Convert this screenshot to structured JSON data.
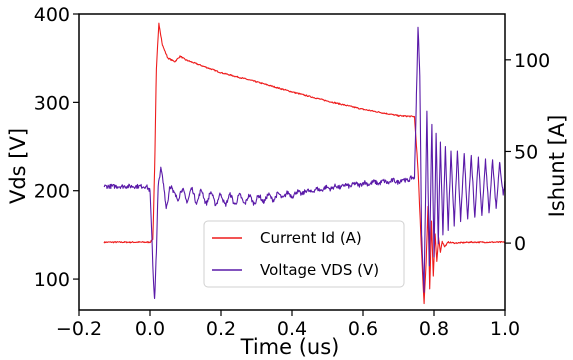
{
  "chart_data": {
    "type": "line",
    "xlabel": "Time (us)",
    "ylabel": "Vds [V]",
    "y2label": "Ishunt [A]",
    "xlim": [
      -0.2,
      1.0
    ],
    "ylim": [
      65,
      400
    ],
    "y2lim": [
      -36.5,
      125
    ],
    "x_ticks": [
      -0.2,
      0.0,
      0.2,
      0.4,
      0.6,
      0.8,
      1.0
    ],
    "x_tick_labels": [
      "−0.2",
      "0.0",
      "0.2",
      "0.4",
      "0.6",
      "0.8",
      "1.0"
    ],
    "y_ticks": [
      100,
      200,
      300,
      400
    ],
    "y_tick_labels": [
      "100",
      "200",
      "300",
      "400"
    ],
    "y2_ticks": [
      0,
      50,
      100
    ],
    "y2_tick_labels": [
      "0",
      "50",
      "100"
    ],
    "grid": false,
    "legend_position": "lower-center",
    "series": [
      {
        "name": "Current Id (A)",
        "color": "#ee1c1c",
        "axis": "y2",
        "points": [
          [
            -0.13,
            0.5
          ],
          [
            0.0,
            0.5
          ],
          [
            0.008,
            2
          ],
          [
            0.013,
            40
          ],
          [
            0.018,
            95
          ],
          [
            0.025,
            120
          ],
          [
            0.035,
            108
          ],
          [
            0.05,
            101
          ],
          [
            0.07,
            99
          ],
          [
            0.085,
            102
          ],
          [
            0.1,
            100
          ],
          [
            0.2,
            93
          ],
          [
            0.3,
            88
          ],
          [
            0.4,
            82.5
          ],
          [
            0.5,
            77.5
          ],
          [
            0.6,
            73
          ],
          [
            0.7,
            69.5
          ],
          [
            0.745,
            69
          ],
          [
            0.755,
            40
          ],
          [
            0.765,
            -5
          ],
          [
            0.772,
            -33
          ],
          [
            0.778,
            -10
          ],
          [
            0.783,
            20
          ],
          [
            0.788,
            -25
          ],
          [
            0.793,
            12
          ],
          [
            0.798,
            -18
          ],
          [
            0.803,
            5
          ],
          [
            0.808,
            -10
          ],
          [
            0.813,
            3
          ],
          [
            0.818,
            -5
          ],
          [
            0.823,
            1
          ],
          [
            0.83,
            -2
          ],
          [
            0.84,
            0.5
          ],
          [
            0.86,
            0
          ],
          [
            0.9,
            0.5
          ],
          [
            0.95,
            0.5
          ],
          [
            1.0,
            0.5
          ]
        ],
        "noise": 0.7
      },
      {
        "name": "Voltage VDS (V)",
        "color": "#5a1aa8",
        "axis": "y",
        "points": [
          [
            -0.13,
            205
          ],
          [
            -0.01,
            205
          ],
          [
            0.0,
            200
          ],
          [
            0.005,
            150
          ],
          [
            0.01,
            95
          ],
          [
            0.013,
            78
          ],
          [
            0.018,
            130
          ],
          [
            0.023,
            205
          ],
          [
            0.03,
            225
          ],
          [
            0.037,
            200
          ],
          [
            0.045,
            185
          ],
          [
            0.055,
            208
          ],
          [
            0.065,
            190
          ],
          [
            0.075,
            200
          ],
          [
            0.09,
            193
          ],
          [
            0.1,
            196
          ],
          [
            0.2,
            190
          ],
          [
            0.3,
            190
          ],
          [
            0.4,
            196
          ],
          [
            0.5,
            203
          ],
          [
            0.6,
            208
          ],
          [
            0.7,
            211
          ],
          [
            0.745,
            214
          ],
          [
            0.75,
            300
          ],
          [
            0.755,
            385
          ],
          [
            0.76,
            330
          ],
          [
            0.765,
            150
          ],
          [
            0.772,
            85
          ],
          [
            0.78,
            290
          ],
          [
            0.787,
            115
          ],
          [
            0.794,
            275
          ],
          [
            0.8,
            125
          ],
          [
            0.806,
            265
          ],
          [
            0.812,
            140
          ],
          [
            0.818,
            255
          ],
          [
            0.825,
            150
          ],
          [
            0.832,
            250
          ],
          [
            0.84,
            155
          ],
          [
            0.848,
            245
          ],
          [
            0.857,
            160
          ],
          [
            0.866,
            245
          ],
          [
            0.875,
            165
          ],
          [
            0.885,
            242
          ],
          [
            0.895,
            168
          ],
          [
            0.905,
            240
          ],
          [
            0.915,
            170
          ],
          [
            0.925,
            238
          ],
          [
            0.935,
            172
          ],
          [
            0.945,
            236
          ],
          [
            0.955,
            175
          ],
          [
            0.965,
            235
          ],
          [
            0.975,
            180
          ],
          [
            0.985,
            232
          ],
          [
            0.995,
            195
          ],
          [
            1.0,
            210
          ]
        ],
        "noise": 5,
        "ripple_range": [
          0.03,
          0.745
        ]
      }
    ]
  }
}
